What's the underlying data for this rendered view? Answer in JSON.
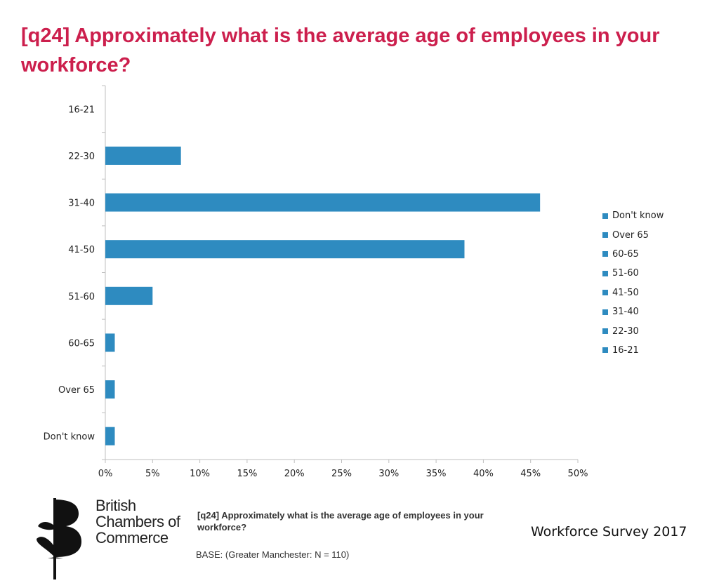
{
  "title": "[q24] Approximately what is the average age of employees in your workforce?",
  "chart_data": {
    "type": "bar",
    "orientation": "horizontal",
    "categories": [
      "16-21",
      "22-30",
      "31-40",
      "41-50",
      "51-60",
      "60-65",
      "Over 65",
      "Don't know"
    ],
    "values": [
      0,
      8,
      46,
      38,
      5,
      1,
      1,
      1
    ],
    "xlim": [
      0,
      50
    ],
    "xticks": [
      "0%",
      "5%",
      "10%",
      "15%",
      "20%",
      "25%",
      "30%",
      "35%",
      "40%",
      "45%",
      "50%"
    ],
    "legend": [
      "Don't know",
      "Over 65",
      "60-65",
      "51-60",
      "41-50",
      "31-40",
      "22-30",
      "16-21"
    ],
    "legend_position": "right",
    "bar_color": "#2e8bc0"
  },
  "footer": {
    "question": "[q24] Approximately what is the average age of employees in your workforce?",
    "base": "BASE: (Greater Manchester: N = 110)",
    "survey": "Workforce Survey 2017"
  },
  "logo": {
    "line1": "British",
    "line2": "Chambers of",
    "line3": "Commerce"
  }
}
